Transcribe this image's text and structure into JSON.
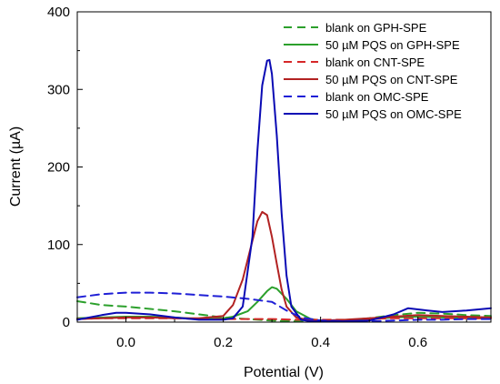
{
  "chart_data": {
    "type": "line",
    "xlabel": "Potential (V)",
    "ylabel": "Current (µA)",
    "xlim": [
      -0.1,
      0.75
    ],
    "ylim": [
      0,
      400
    ],
    "xticks": [
      0.0,
      0.2,
      0.4,
      0.6
    ],
    "xtick_labels": [
      "0.0",
      "0.2",
      "0.4",
      "0.6"
    ],
    "yticks": [
      0,
      100,
      200,
      300,
      400
    ],
    "ytick_labels": [
      "0",
      "100",
      "200",
      "300",
      "400"
    ],
    "grid": false,
    "legend_position": "top-right",
    "series": [
      {
        "name": "blank on GPH-SPE",
        "color": "#2ca02c",
        "dash": "dashed",
        "x": [
          -0.1,
          -0.05,
          0.0,
          0.05,
          0.1,
          0.15,
          0.2,
          0.25,
          0.3,
          0.35,
          0.4,
          0.45,
          0.5,
          0.55,
          0.6,
          0.65,
          0.7,
          0.75
        ],
        "y": [
          27,
          22,
          20,
          17,
          14,
          10,
          6,
          4,
          2,
          1,
          1,
          2,
          5,
          9,
          12,
          11,
          9,
          8
        ]
      },
      {
        "name": "50 µM PQS on GPH-SPE",
        "color": "#2ca02c",
        "dash": "solid",
        "x": [
          -0.1,
          -0.05,
          0.0,
          0.05,
          0.1,
          0.15,
          0.2,
          0.22,
          0.25,
          0.27,
          0.29,
          0.3,
          0.31,
          0.33,
          0.35,
          0.38,
          0.4,
          0.45,
          0.5,
          0.55,
          0.6,
          0.65,
          0.7,
          0.75
        ],
        "y": [
          5,
          6,
          7,
          7,
          6,
          4,
          5,
          7,
          14,
          26,
          40,
          45,
          43,
          30,
          14,
          4,
          2,
          2,
          4,
          6,
          7,
          6,
          5,
          5
        ]
      },
      {
        "name": "blank on CNT-SPE",
        "color": "#d62728",
        "dash": "dashed",
        "x": [
          -0.1,
          -0.05,
          0.0,
          0.05,
          0.1,
          0.15,
          0.2,
          0.25,
          0.3,
          0.35,
          0.4,
          0.45,
          0.5,
          0.55,
          0.6,
          0.65,
          0.7,
          0.75
        ],
        "y": [
          4,
          5,
          5,
          5,
          5,
          4,
          4,
          4,
          4,
          3,
          3,
          3,
          4,
          5,
          5,
          5,
          5,
          5
        ]
      },
      {
        "name": "50 µM PQS on CNT-SPE",
        "color": "#b22222",
        "dash": "solid",
        "x": [
          -0.1,
          -0.05,
          0.0,
          0.05,
          0.1,
          0.15,
          0.2,
          0.22,
          0.24,
          0.26,
          0.27,
          0.28,
          0.29,
          0.3,
          0.31,
          0.32,
          0.33,
          0.35,
          0.38,
          0.4,
          0.45,
          0.5,
          0.55,
          0.6,
          0.65,
          0.7,
          0.75
        ],
        "y": [
          4,
          5,
          6,
          6,
          5,
          5,
          8,
          22,
          55,
          105,
          130,
          142,
          138,
          110,
          75,
          42,
          20,
          6,
          2,
          2,
          3,
          5,
          7,
          9,
          8,
          7,
          6
        ]
      },
      {
        "name": "blank on OMC-SPE",
        "color": "#1f1fd6",
        "dash": "dashed",
        "x": [
          -0.1,
          -0.05,
          0.0,
          0.05,
          0.1,
          0.15,
          0.2,
          0.25,
          0.3,
          0.33,
          0.36,
          0.4,
          0.45,
          0.5,
          0.55,
          0.6,
          0.65,
          0.7,
          0.75
        ],
        "y": [
          32,
          36,
          38,
          38,
          37,
          35,
          33,
          30,
          26,
          15,
          6,
          2,
          1,
          1,
          2,
          3,
          3,
          4,
          4
        ]
      },
      {
        "name": "50 µM PQS on OMC-SPE",
        "color": "#0a0ab4",
        "dash": "solid",
        "x": [
          -0.1,
          -0.05,
          -0.02,
          0.0,
          0.05,
          0.1,
          0.15,
          0.2,
          0.22,
          0.24,
          0.26,
          0.27,
          0.28,
          0.29,
          0.295,
          0.3,
          0.31,
          0.32,
          0.33,
          0.34,
          0.36,
          0.38,
          0.4,
          0.45,
          0.5,
          0.55,
          0.58,
          0.62,
          0.65,
          0.7,
          0.75
        ],
        "y": [
          3,
          9,
          12,
          12,
          10,
          6,
          3,
          3,
          5,
          20,
          110,
          220,
          305,
          337,
          338,
          320,
          240,
          140,
          60,
          20,
          3,
          1,
          1,
          1,
          2,
          10,
          18,
          15,
          13,
          15,
          18
        ]
      }
    ],
    "legend": [
      "blank on GPH-SPE",
      "50 µM PQS on GPH-SPE",
      "blank on CNT-SPE",
      "50 µM PQS on CNT-SPE",
      "blank on OMC-SPE",
      "50 µM PQS on OMC-SPE"
    ]
  }
}
